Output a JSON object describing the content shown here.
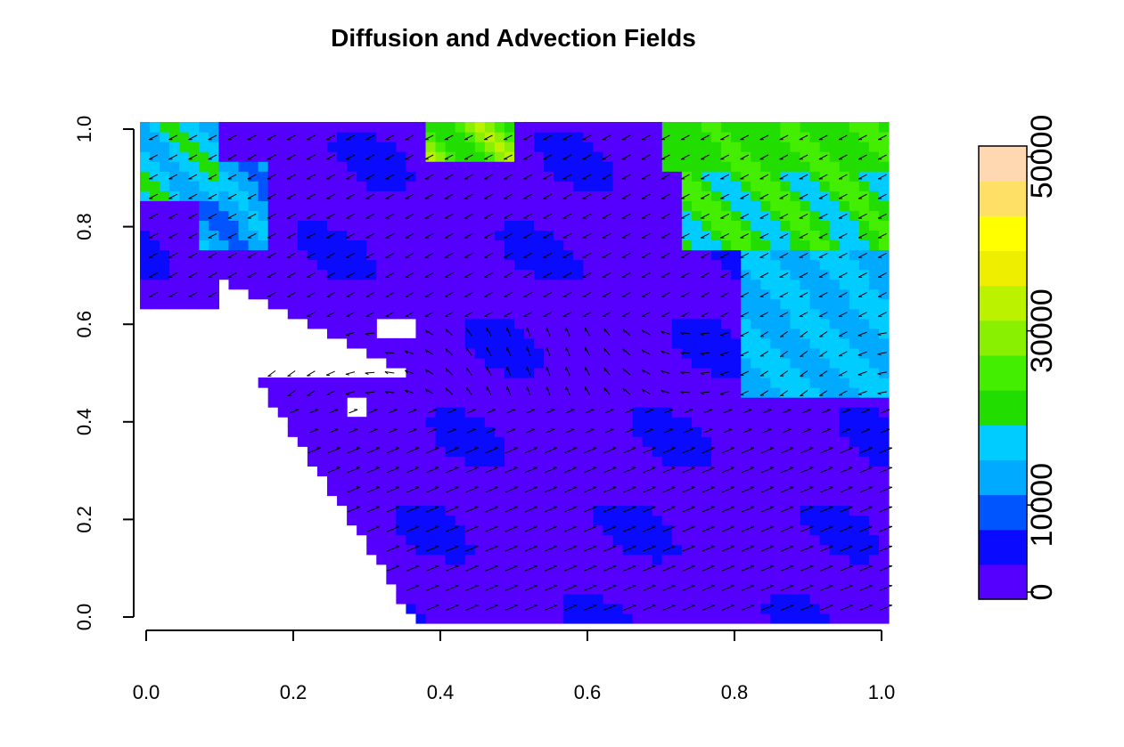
{
  "chart_data": {
    "type": "heatmap",
    "title": "Diffusion and Advection Fields",
    "xlabel": "",
    "ylabel": "",
    "xlim": [
      0,
      1
    ],
    "ylim": [
      0,
      1
    ],
    "x_ticks": [
      "0.0",
      "0.2",
      "0.4",
      "0.6",
      "0.8",
      "1.0"
    ],
    "y_ticks": [
      "0.0",
      "0.2",
      "0.4",
      "0.6",
      "0.8",
      "1.0"
    ],
    "colorbar": {
      "range": [
        0,
        50000
      ],
      "tick_values": [
        0,
        10000,
        30000,
        50000
      ],
      "tick_labels": [
        "0",
        "10000",
        "30000",
        "50000"
      ],
      "placement": "right",
      "colors": [
        "#5500ff",
        "#0a0aff",
        "#0055ff",
        "#00aaff",
        "#00ccff",
        "#22dd00",
        "#44ee00",
        "#88f000",
        "#bbf200",
        "#eeee00",
        "#ffff00",
        "#ffe066",
        "#ffd7b0"
      ]
    },
    "grid": false,
    "overlay": "advection arrow field",
    "value_regions": [
      {
        "region": "top-left band",
        "x": [
          0.0,
          0.1
        ],
        "y": [
          0.85,
          1.0
        ],
        "approx_value": 18000
      },
      {
        "region": "upper-left patch",
        "x": [
          0.08,
          0.17
        ],
        "y": [
          0.75,
          0.92
        ],
        "approx_value": 14000
      },
      {
        "region": "top-center band",
        "x": [
          0.38,
          0.5
        ],
        "y": [
          0.93,
          1.0
        ],
        "approx_value": 27000
      },
      {
        "region": "upper-right",
        "x": [
          0.72,
          1.0
        ],
        "y": [
          0.75,
          1.0
        ],
        "approx_value": 22000
      },
      {
        "region": "right-middle",
        "x": [
          0.8,
          1.0
        ],
        "y": [
          0.45,
          0.75
        ],
        "approx_value": 16000
      },
      {
        "region": "center",
        "x": [
          0.3,
          0.8
        ],
        "y": [
          0.1,
          0.7
        ],
        "approx_value": 3000
      }
    ]
  }
}
